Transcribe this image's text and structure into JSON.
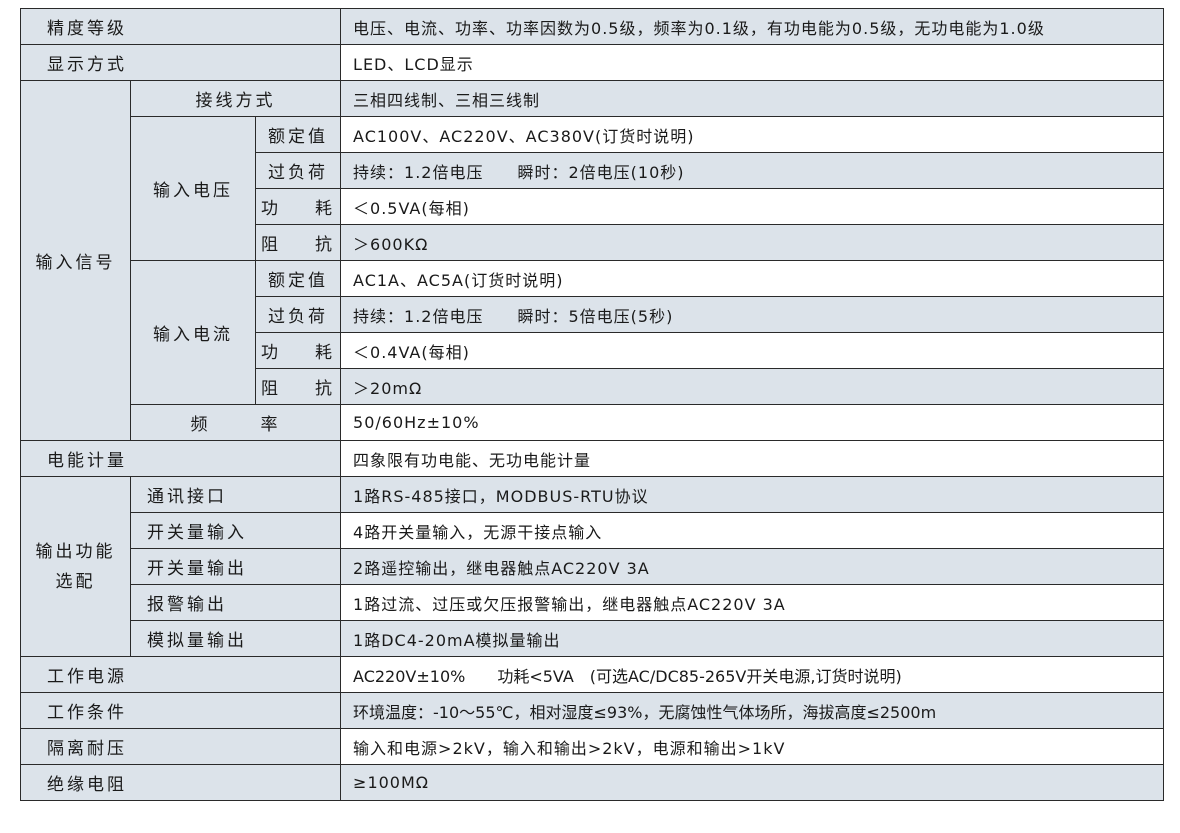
{
  "rows": {
    "accuracy": {
      "label": "精度等级",
      "value": "电压、电流、功率、功率因数为0.5级，频率为0.1级，有功电能为0.5级，无功电能为1.0级"
    },
    "display": {
      "label": "显示方式",
      "value": "LED、LCD显示"
    },
    "input_signal": {
      "label": "输入信号",
      "wiring": {
        "label": "接线方式",
        "value": "三相四线制、三相三线制"
      },
      "voltage": {
        "label": "输入电压",
        "rated": {
          "label": "额定值",
          "value": "AC100V、AC220V、AC380V(订货时说明)"
        },
        "overload": {
          "label": "过负荷",
          "value": "持续：1.2倍电压　　瞬时：2倍电压(10秒)"
        },
        "power": {
          "label_a": "功",
          "label_b": "耗",
          "value": "＜0.5VA(每相)"
        },
        "impedance": {
          "label_a": "阻",
          "label_b": "抗",
          "value": "＞600KΩ"
        }
      },
      "current": {
        "label": "输入电流",
        "rated": {
          "label": "额定值",
          "value": "AC1A、AC5A(订货时说明)"
        },
        "overload": {
          "label": "过负荷",
          "value": "持续：1.2倍电压　　瞬时：5倍电压(5秒)"
        },
        "power": {
          "label_a": "功",
          "label_b": "耗",
          "value": "＜0.4VA(每相)"
        },
        "impedance": {
          "label_a": "阻",
          "label_b": "抗",
          "value": "＞20mΩ"
        }
      },
      "frequency": {
        "label_a": "频",
        "label_b": "率",
        "value": "50/60Hz±10%"
      }
    },
    "energy": {
      "label": "电能计量",
      "value": "四象限有功电能、无功电能计量"
    },
    "output": {
      "label_line1": "输出功能",
      "label_line2": "选配",
      "comm": {
        "label": "通讯接口",
        "value": "1路RS-485接口，MODBUS-RTU协议"
      },
      "di": {
        "label": "开关量输入",
        "value": "4路开关量输入，无源干接点输入"
      },
      "do": {
        "label": "开关量输出",
        "value": "2路遥控输出，继电器触点AC220V 3A"
      },
      "alarm": {
        "label": "报警输出",
        "value": "1路过流、过压或欠压报警输出，继电器触点AC220V 3A"
      },
      "analog": {
        "label": "模拟量输出",
        "value": "1路DC4-20mA模拟量输出"
      }
    },
    "power_supply": {
      "label": "工作电源",
      "value": "AC220V±10%　　功耗<5VA　(可选AC/DC85-265V开关电源,订货时说明)"
    },
    "conditions": {
      "label": "工作条件",
      "value": "环境温度：-10～55℃，相对湿度≤93%，无腐蚀性气体场所，海拔高度≤2500m"
    },
    "isolation": {
      "label": "隔离耐压",
      "value": "输入和电源>2kV，输入和输出>2kV，电源和输出>1kV"
    },
    "insulation": {
      "label": "绝缘电阻",
      "value": "≥100MΩ"
    }
  },
  "colors": {
    "label_bg": "#dce3ea",
    "border": "#2a2a2a"
  }
}
